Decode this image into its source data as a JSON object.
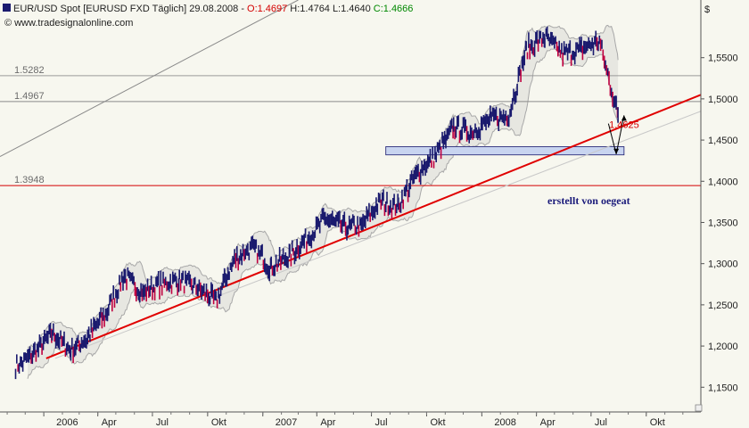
{
  "header": {
    "instrument": "EUR/USD Spot [EURUSD FXD  Täglich] 29.08.2008 -",
    "open": "O:1.4697",
    "high": "H:1.4764",
    "low": "L:1.4640",
    "close": "C:1.4666",
    "source": "www.tradesignalonline.com",
    "currency_symbol": "$"
  },
  "levels": [
    {
      "label": "1.5282",
      "value": 1.5282,
      "color": "#9a9a9a"
    },
    {
      "label": "1.4967",
      "value": 1.4967,
      "color": "#8a8a8a"
    },
    {
      "label": "1.3948",
      "value": 1.3948,
      "color": "#d40000"
    }
  ],
  "annotations": {
    "author_text": "erstellt von oegeat",
    "target_label": "1.4625"
  },
  "colors": {
    "background": "#f7f7ef",
    "candles": "#1a1a6e",
    "down_accent": "#c00040",
    "trendline": "#e00000",
    "bollinger": "#a8a8a8",
    "band_fill": "#c8c8c8",
    "zone_fill": "#c8d4f0",
    "open_color": "#d40000",
    "close_color": "#008800"
  },
  "chart_data": {
    "type": "candlestick",
    "title": "EUR/USD Spot [EURUSD FXD  Täglich] 29.08.2008",
    "x_ticks": [
      "2006",
      "Apr",
      "Jul",
      "Okt",
      "2007",
      "Apr",
      "Jul",
      "Okt",
      "2008",
      "Apr",
      "Jul",
      "Okt"
    ],
    "y_ticks": [
      "1,5500",
      "1,5000",
      "1,4500",
      "1,4000",
      "1,3500",
      "1,3000",
      "1,2500",
      "1,2000",
      "1,1500"
    ],
    "ylim": [
      1.12,
      1.62
    ],
    "x_range": [
      "2005-10-20",
      "2008-12-31"
    ],
    "series": [
      {
        "dates": [
          "2005-11-15",
          "2005-12-15",
          "2006-01-15",
          "2006-02-15",
          "2006-03-15",
          "2006-04-15",
          "2006-05-15",
          "2006-06-15",
          "2006-07-15",
          "2006-08-15",
          "2006-09-15",
          "2006-10-15",
          "2006-11-15",
          "2006-12-15",
          "2007-01-15",
          "2007-02-15",
          "2007-03-15",
          "2007-04-15",
          "2007-05-15",
          "2007-06-15",
          "2007-07-15",
          "2007-08-15",
          "2007-09-15",
          "2007-10-15",
          "2007-11-15",
          "2007-12-15",
          "2008-01-15",
          "2008-02-15",
          "2008-03-15",
          "2008-04-15",
          "2008-05-15",
          "2008-06-15",
          "2008-07-15",
          "2008-08-15"
        ],
        "values": [
          1.175,
          1.19,
          1.215,
          1.195,
          1.21,
          1.24,
          1.285,
          1.265,
          1.275,
          1.28,
          1.27,
          1.255,
          1.305,
          1.32,
          1.295,
          1.31,
          1.33,
          1.355,
          1.345,
          1.345,
          1.375,
          1.37,
          1.41,
          1.43,
          1.465,
          1.46,
          1.475,
          1.48,
          1.56,
          1.575,
          1.555,
          1.56,
          1.57,
          1.48
        ]
      }
    ],
    "bollinger_bands": true,
    "trendlines": [
      {
        "from": [
          "2006-01-05",
          1.185
        ],
        "to": [
          "2008-12-31",
          1.505
        ],
        "color": "#e00000"
      },
      {
        "from": [
          "2006-01-20",
          1.185
        ],
        "to": [
          "2008-12-31",
          1.485
        ],
        "color": "#c8c8c8"
      },
      {
        "from": [
          "2005-10-20",
          1.43
        ],
        "to": [
          "2007-03-01",
          1.62
        ],
        "color": "#8a8a8a"
      }
    ],
    "zone": {
      "from": "2007-07-25",
      "to": "2008-08-25",
      "low": 1.432,
      "high": 1.442
    },
    "projection": {
      "from": [
        "2008-07-30",
        1.47
      ],
      "low": 1.4625,
      "to": [
        "2008-08-25",
        1.48
      ]
    },
    "grid": false
  }
}
